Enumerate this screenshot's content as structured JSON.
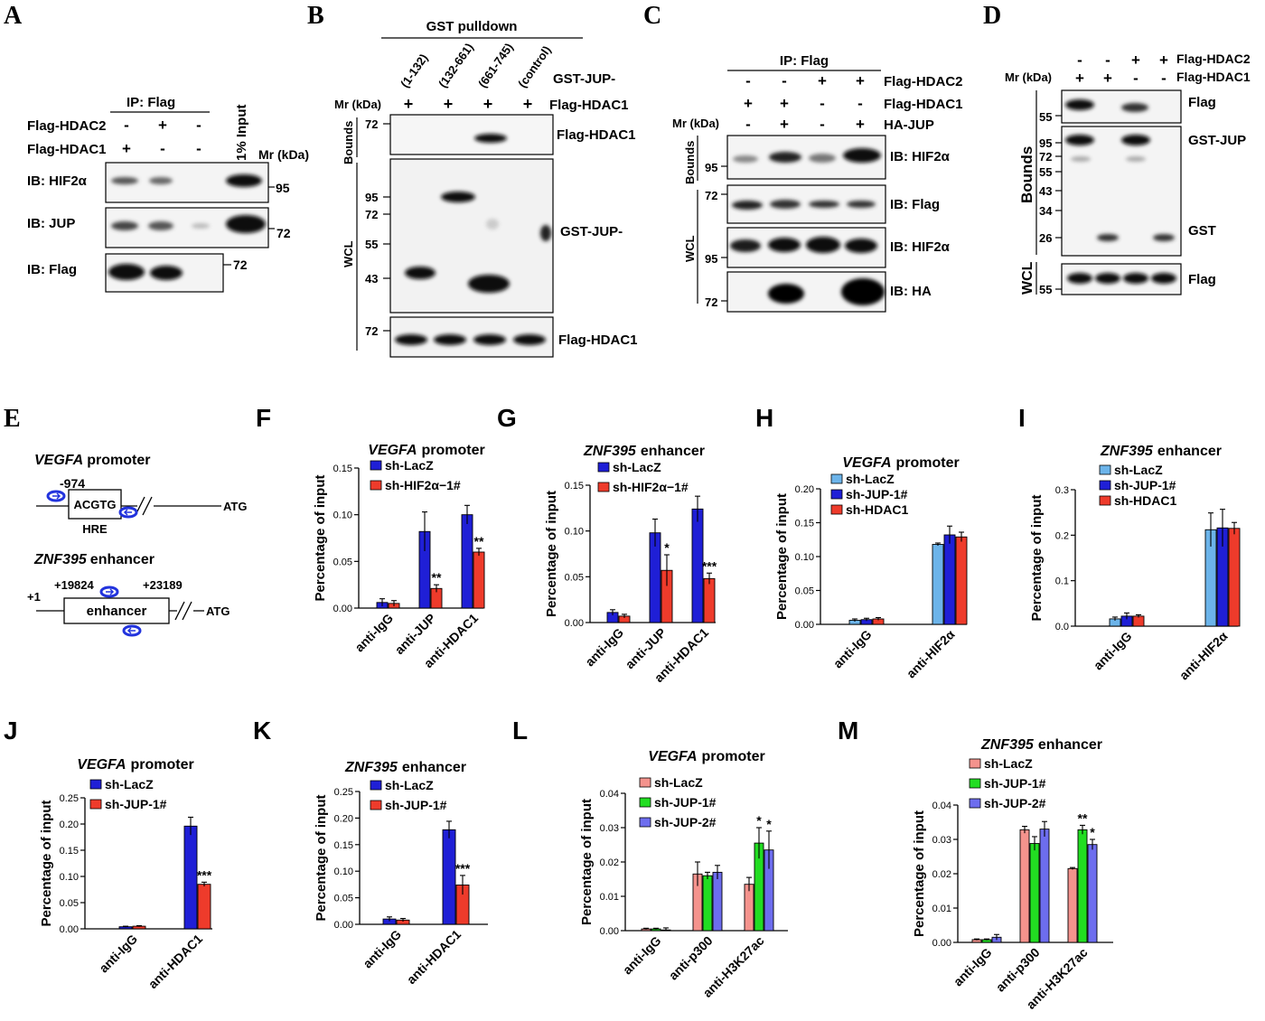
{
  "blots": {
    "A": {
      "letter": "A",
      "ip_label": "IP: Flag",
      "rows": [
        {
          "label": "Flag-HDAC2",
          "signs": [
            "-",
            "+",
            "-"
          ]
        },
        {
          "label": "Flag-HDAC1",
          "signs": [
            "+",
            "-",
            "-"
          ]
        }
      ],
      "input_label": "1% Input",
      "mr_label": "Mr (kDa)",
      "ib": [
        "IB: HIF2α",
        "IB: JUP",
        "IB: Flag"
      ],
      "markers": [
        "95",
        "72",
        "72"
      ]
    },
    "B": {
      "letter": "B",
      "header": "GST pulldown",
      "constructs": [
        "(1-132)",
        "(132-661)",
        "(661-745)",
        "(control)"
      ],
      "gst_jup": "GST-JUP-",
      "mr_label": "Mr (kDa)",
      "flag_row": "Flag-HDAC1",
      "signs": [
        "+",
        "+",
        "+",
        "+"
      ],
      "bounds": "Bounds",
      "wcl": "WCL",
      "labels": [
        "Flag-HDAC1",
        "GST-JUP-",
        "Flag-HDAC1"
      ],
      "markers_top": [
        "72"
      ],
      "markers_mid": [
        "95",
        "72",
        "55",
        "43"
      ],
      "markers_bot": [
        "72"
      ]
    },
    "C": {
      "letter": "C",
      "ip_label": "IP: Flag",
      "rows": [
        {
          "label": "Flag-HDAC2",
          "signs": [
            "-",
            "-",
            "+",
            "+"
          ]
        },
        {
          "label": "Flag-HDAC1",
          "signs": [
            "+",
            "+",
            "-",
            "-"
          ]
        },
        {
          "label": "HA-JUP",
          "signs": [
            "-",
            "+",
            "-",
            "+"
          ]
        }
      ],
      "mr_label": "Mr (kDa)",
      "bounds": "Bounds",
      "wcl": "WCL",
      "ib": [
        "IB: HIF2α",
        "IB: Flag",
        "IB: HIF2α",
        "IB: HA"
      ],
      "markers": [
        "95",
        "72",
        "95",
        "72"
      ]
    },
    "D": {
      "letter": "D",
      "rows": [
        {
          "label": "Flag-HDAC2",
          "signs": [
            "-",
            "-",
            "+",
            "+"
          ]
        },
        {
          "label": "Flag-HDAC1",
          "signs": [
            "+",
            "+",
            "-",
            "-"
          ]
        }
      ],
      "mr_label": "Mr (kDa)",
      "bounds": "Bounds",
      "wcl": "WCL",
      "labels": [
        "Flag",
        "GST-JUP",
        "GST",
        "Flag"
      ],
      "markers": [
        "55",
        "95",
        "72",
        "55",
        "43",
        "34",
        "26",
        "55"
      ]
    }
  },
  "schematic_E": {
    "letter": "E",
    "vegfa_gene": "VEGFA",
    "vegfa_suffix": "promoter",
    "pos_974": "-974",
    "box": "ACGTG",
    "hre": "HRE",
    "atg": "ATG",
    "znf_gene": "ZNF395",
    "znf_suffix": "enhancer",
    "plus1": "+1",
    "pos_19824": "+19824",
    "pos_23189": "+23189",
    "enh_box": "enhancer",
    "atg2": "ATG"
  },
  "colors": {
    "blue": "#1f1fd6",
    "red": "#ee3b2b",
    "lightblue": "#6cb4ea",
    "green": "#22dd22",
    "pink": "#f4938d",
    "purple": "#6d6dee"
  },
  "chart_data": [
    {
      "letter": "F",
      "type": "bar",
      "title_gene": "VEGFA",
      "title_rest": "promoter",
      "ylabel": "Percentage of input",
      "categories": [
        "anti-IgG",
        "anti-JUP",
        "anti-HDAC1"
      ],
      "ylim": [
        0,
        0.15
      ],
      "yticks": [
        "0.00",
        "0.05",
        "0.10",
        "0.15"
      ],
      "tickvals": [
        0,
        0.05,
        0.1,
        0.15
      ],
      "series": [
        {
          "name": "sh-LacZ",
          "color": "#1f1fd6",
          "values": [
            0.006,
            0.082,
            0.1
          ],
          "errors": [
            0.004,
            0.021,
            0.01
          ]
        },
        {
          "name": "sh-HIF2α−1#",
          "color": "#ee3b2b",
          "values": [
            0.005,
            0.021,
            0.06
          ],
          "errors": [
            0.003,
            0.004,
            0.004
          ]
        }
      ],
      "annotations": [
        {
          "series": 1,
          "index": 1,
          "text": "**"
        },
        {
          "series": 1,
          "index": 2,
          "text": "**"
        }
      ]
    },
    {
      "letter": "G",
      "type": "bar",
      "title_gene": "ZNF395",
      "title_rest": "enhancer",
      "ylabel": "Percentage of input",
      "categories": [
        "anti-IgG",
        "anti-JUP",
        "anti-HDAC1"
      ],
      "ylim": [
        0,
        0.15
      ],
      "yticks": [
        "0.00",
        "0.05",
        "0.10",
        "0.15"
      ],
      "tickvals": [
        0,
        0.05,
        0.1,
        0.15
      ],
      "series": [
        {
          "name": "sh-LacZ",
          "color": "#1f1fd6",
          "values": [
            0.011,
            0.098,
            0.124
          ],
          "errors": [
            0.003,
            0.015,
            0.014
          ]
        },
        {
          "name": "sh-HIF2α−1#",
          "color": "#ee3b2b",
          "values": [
            0.007,
            0.057,
            0.048
          ],
          "errors": [
            0.002,
            0.017,
            0.006
          ]
        }
      ],
      "annotations": [
        {
          "series": 1,
          "index": 1,
          "text": "*"
        },
        {
          "series": 1,
          "index": 2,
          "text": "***"
        }
      ]
    },
    {
      "letter": "H",
      "type": "bar",
      "title_gene": "VEGFA",
      "title_rest": "promoter",
      "ylabel": "Percentage of input",
      "categories": [
        "anti-IgG",
        "anti-HIF2α"
      ],
      "ylim": [
        0,
        0.2
      ],
      "yticks": [
        "0.00",
        "0.05",
        "0.10",
        "0.15",
        "0.20"
      ],
      "tickvals": [
        0,
        0.05,
        0.1,
        0.15,
        0.2
      ],
      "series": [
        {
          "name": "sh-LacZ",
          "color": "#6cb4ea",
          "values": [
            0.006,
            0.118
          ],
          "errors": [
            0.002,
            0.002
          ]
        },
        {
          "name": "sh-JUP-1#",
          "color": "#1f1fd6",
          "values": [
            0.007,
            0.132
          ],
          "errors": [
            0.002,
            0.013
          ]
        },
        {
          "name": "sh-HDAC1",
          "color": "#ee3b2b",
          "values": [
            0.008,
            0.129
          ],
          "errors": [
            0.002,
            0.007
          ]
        }
      ],
      "annotations": []
    },
    {
      "letter": "I",
      "type": "bar",
      "title_gene": "ZNF395",
      "title_rest": "enhancer",
      "ylabel": "Percentage of input",
      "categories": [
        "anti-IgG",
        "anti-HIF2α"
      ],
      "ylim": [
        0,
        0.3
      ],
      "yticks": [
        "0.0",
        "0.1",
        "0.2",
        "0.3"
      ],
      "tickvals": [
        0,
        0.1,
        0.2,
        0.3
      ],
      "series": [
        {
          "name": "sh-LacZ",
          "color": "#6cb4ea",
          "values": [
            0.016,
            0.212
          ],
          "errors": [
            0.004,
            0.037
          ]
        },
        {
          "name": "sh-JUP-1#",
          "color": "#1f1fd6",
          "values": [
            0.022,
            0.216
          ],
          "errors": [
            0.007,
            0.041
          ]
        },
        {
          "name": "sh-HDAC1",
          "color": "#ee3b2b",
          "values": [
            0.022,
            0.215
          ],
          "errors": [
            0.003,
            0.013
          ]
        }
      ],
      "annotations": []
    },
    {
      "letter": "J",
      "type": "bar",
      "title_gene": "VEGFA",
      "title_rest": "promoter",
      "ylabel": "Percentage of input",
      "categories": [
        "anti-IgG",
        "anti-HDAC1"
      ],
      "ylim": [
        0,
        0.25
      ],
      "yticks": [
        "0.00",
        "0.05",
        "0.10",
        "0.15",
        "0.20",
        "0.25"
      ],
      "tickvals": [
        0,
        0.05,
        0.1,
        0.15,
        0.2,
        0.25
      ],
      "series": [
        {
          "name": "sh-LacZ",
          "color": "#1f1fd6",
          "values": [
            0.004,
            0.196
          ],
          "errors": [
            0.001,
            0.017
          ]
        },
        {
          "name": "sh-JUP-1#",
          "color": "#ee3b2b",
          "values": [
            0.005,
            0.085
          ],
          "errors": [
            0.001,
            0.004
          ]
        }
      ],
      "annotations": [
        {
          "series": 1,
          "index": 1,
          "text": "***"
        }
      ]
    },
    {
      "letter": "K",
      "type": "bar",
      "title_gene": "ZNF395",
      "title_rest": "enhancer",
      "ylabel": "Percentage of input",
      "categories": [
        "anti-IgG",
        "anti-HDAC1"
      ],
      "ylim": [
        0,
        0.25
      ],
      "yticks": [
        "0.00",
        "0.05",
        "0.10",
        "0.15",
        "0.20",
        "0.25"
      ],
      "tickvals": [
        0,
        0.05,
        0.1,
        0.15,
        0.2,
        0.25
      ],
      "series": [
        {
          "name": "sh-LacZ",
          "color": "#1f1fd6",
          "values": [
            0.01,
            0.178
          ],
          "errors": [
            0.004,
            0.016
          ]
        },
        {
          "name": "sh-JUP-1#",
          "color": "#ee3b2b",
          "values": [
            0.008,
            0.074
          ],
          "errors": [
            0.003,
            0.018
          ]
        }
      ],
      "annotations": [
        {
          "series": 1,
          "index": 1,
          "text": "***"
        }
      ]
    },
    {
      "letter": "L",
      "type": "bar",
      "title_gene": "VEGFA",
      "title_rest": "promoter",
      "ylabel": "Percentage of input",
      "categories": [
        "anti-IgG",
        "anti-p300",
        "anti-H3K27ac"
      ],
      "ylim": [
        0,
        0.04
      ],
      "yticks": [
        "0.00",
        "0.01",
        "0.02",
        "0.03",
        "0.04"
      ],
      "tickvals": [
        0,
        0.01,
        0.02,
        0.03,
        0.04
      ],
      "series": [
        {
          "name": "sh-LacZ",
          "color": "#f4938d",
          "values": [
            0.0005,
            0.0165,
            0.0135
          ],
          "errors": [
            0.0002,
            0.0035,
            0.002
          ]
        },
        {
          "name": "sh-JUP-1#",
          "color": "#22dd22",
          "values": [
            0.0005,
            0.016,
            0.0255
          ],
          "errors": [
            0.0002,
            0.001,
            0.0045
          ]
        },
        {
          "name": "sh-JUP-2#",
          "color": "#6d6dee",
          "values": [
            0.0002,
            0.017,
            0.0235
          ],
          "errors": [
            0.0006,
            0.002,
            0.0055
          ]
        }
      ],
      "annotations": [
        {
          "series": 1,
          "index": 2,
          "text": "*"
        },
        {
          "series": 2,
          "index": 2,
          "text": "*"
        }
      ]
    },
    {
      "letter": "M",
      "type": "bar",
      "title_gene": "ZNF395",
      "title_rest": "enhancer",
      "ylabel": "Percentage of input",
      "categories": [
        "anti-IgG",
        "anti-p300",
        "anti-H3K27ac"
      ],
      "ylim": [
        0,
        0.04
      ],
      "yticks": [
        "0.00",
        "0.01",
        "0.02",
        "0.03",
        "0.04"
      ],
      "tickvals": [
        0,
        0.01,
        0.02,
        0.03,
        0.04
      ],
      "series": [
        {
          "name": "sh-LacZ",
          "color": "#f4938d",
          "values": [
            0.0008,
            0.0328,
            0.0215
          ],
          "errors": [
            0.0002,
            0.001,
            0.0003
          ]
        },
        {
          "name": "sh-JUP-1#",
          "color": "#22dd22",
          "values": [
            0.0008,
            0.0288,
            0.0328
          ],
          "errors": [
            0.0002,
            0.002,
            0.0013
          ]
        },
        {
          "name": "sh-JUP-2#",
          "color": "#6d6dee",
          "values": [
            0.0015,
            0.033,
            0.0285
          ],
          "errors": [
            0.0008,
            0.0022,
            0.0015
          ]
        }
      ],
      "annotations": [
        {
          "series": 1,
          "index": 2,
          "text": "**"
        },
        {
          "series": 2,
          "index": 2,
          "text": "*"
        }
      ]
    }
  ]
}
